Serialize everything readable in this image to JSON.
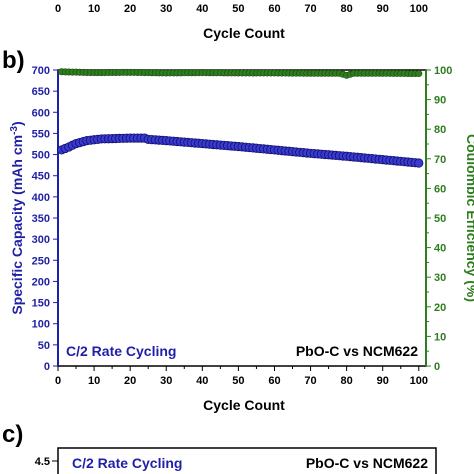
{
  "top_fragment": {
    "x_ticks": [
      "0",
      "10",
      "20",
      "30",
      "40",
      "50",
      "60",
      "70",
      "80",
      "90",
      "100"
    ],
    "x_label": "Cycle Count"
  },
  "chart_data": {
    "type": "scatter",
    "panel_label": "b)",
    "xlabel": "Cycle Count",
    "ylabel_left": "Specific Capacity (mAh cm",
    "ylabel_left_superscript": "-3",
    "ylabel_left_suffix": ")",
    "ylabel_right": "Coulombic Efficiency (%)",
    "xlim": [
      0,
      102
    ],
    "ylim_left": [
      0,
      700
    ],
    "ylim_right": [
      0,
      100
    ],
    "x_ticks": [
      0,
      10,
      20,
      30,
      40,
      50,
      60,
      70,
      80,
      90,
      100
    ],
    "y_left_ticks": [
      0,
      50,
      100,
      150,
      200,
      250,
      300,
      350,
      400,
      450,
      500,
      550,
      600,
      650,
      700
    ],
    "y_right_ticks": [
      0,
      10,
      20,
      30,
      40,
      50,
      60,
      70,
      80,
      90,
      100
    ],
    "annotation_left": "C/2 Rate Cycling",
    "annotation_right": "PbO-C vs NCM622",
    "series": [
      {
        "axis": "left",
        "color": "#1f1fa8",
        "anchors": [
          [
            1,
            511
          ],
          [
            3,
            518
          ],
          [
            5,
            526
          ],
          [
            8,
            533
          ],
          [
            12,
            537
          ],
          [
            16,
            538
          ],
          [
            20,
            539
          ],
          [
            24,
            539
          ],
          [
            25,
            536
          ],
          [
            30,
            533
          ],
          [
            40,
            526
          ],
          [
            50,
            519
          ],
          [
            60,
            511
          ],
          [
            70,
            503
          ],
          [
            80,
            496
          ],
          [
            90,
            488
          ],
          [
            100,
            480
          ]
        ]
      },
      {
        "axis": "right",
        "color": "#2e7d1f",
        "anchors": [
          [
            1,
            99.4
          ],
          [
            10,
            99.1
          ],
          [
            20,
            99.2
          ],
          [
            30,
            99.0
          ],
          [
            40,
            99.1
          ],
          [
            50,
            99.0
          ],
          [
            60,
            99.0
          ],
          [
            70,
            98.9
          ],
          [
            78,
            98.9
          ],
          [
            80,
            98.2
          ],
          [
            82,
            98.9
          ],
          [
            90,
            98.9
          ],
          [
            100,
            98.8
          ]
        ]
      }
    ]
  },
  "bottom_fragment": {
    "panel_label": "c)",
    "y_tick": "4.5",
    "annotation_left": "C/2 Rate Cycling",
    "annotation_right": "PbO-C vs NCM622"
  }
}
